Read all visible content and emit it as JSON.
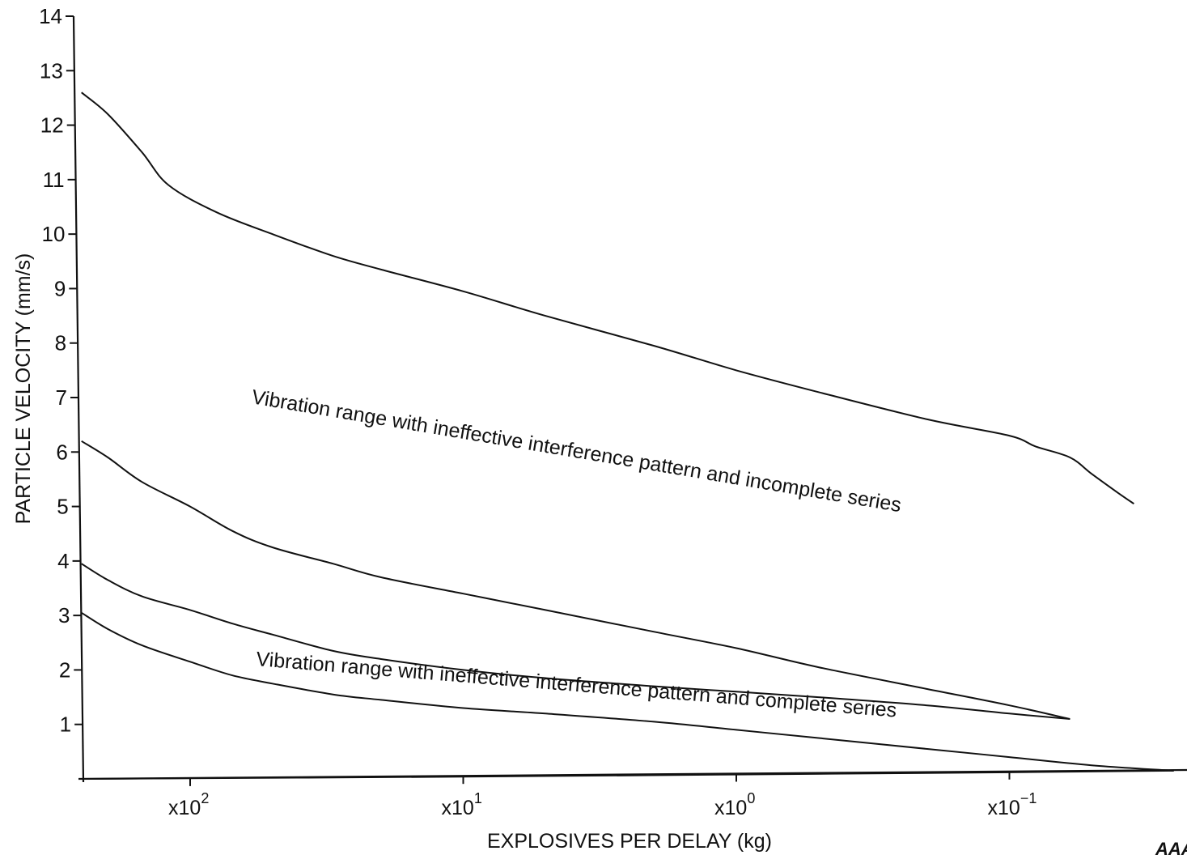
{
  "chart_data": {
    "type": "line",
    "title": "",
    "xlabel": "EXPLOSIVES PER DELAY (kg)",
    "ylabel": "PARTICLE VELOCITY (mm/s)",
    "x_scale": "log",
    "x_direction": "descending",
    "xlim": [
      250,
      0.025
    ],
    "ylim": [
      0,
      14
    ],
    "x_ticks": [
      {
        "value": 100,
        "base": "x10",
        "exp": "2"
      },
      {
        "value": 10,
        "base": "x10",
        "exp": "1"
      },
      {
        "value": 1,
        "base": "x10",
        "exp": "0"
      },
      {
        "value": 0.1,
        "base": "x10",
        "exp": "−1"
      }
    ],
    "y_ticks": [
      "1",
      "2",
      "3",
      "4",
      "5",
      "6",
      "7",
      "8",
      "9",
      "10",
      "11",
      "12",
      "13",
      "14"
    ],
    "grid": false,
    "series": [
      {
        "x": [
          250,
          200,
          150,
          120,
          80,
          50,
          30,
          20,
          10,
          5,
          2,
          1,
          0.5,
          0.2,
          0.1,
          0.08,
          0.06,
          0.05,
          0.04,
          0.035
        ],
        "y": [
          12.6,
          12.2,
          11.5,
          10.9,
          10.4,
          10.0,
          9.6,
          9.35,
          8.95,
          8.5,
          7.95,
          7.5,
          7.1,
          6.6,
          6.3,
          6.1,
          5.9,
          5.6,
          5.25,
          5.05
        ]
      },
      {
        "x": [
          250,
          200,
          150,
          100,
          70,
          50,
          30,
          20,
          10,
          5,
          2,
          1,
          0.5,
          0.2,
          0.1,
          0.06
        ],
        "y": [
          6.2,
          5.9,
          5.45,
          5.0,
          4.55,
          4.25,
          3.95,
          3.7,
          3.4,
          3.1,
          2.7,
          2.4,
          2.05,
          1.65,
          1.35,
          1.1
        ]
      },
      {
        "x": [
          250,
          200,
          150,
          100,
          70,
          50,
          30,
          20,
          10,
          5,
          2,
          1,
          0.5,
          0.2,
          0.1,
          0.06
        ],
        "y": [
          3.95,
          3.65,
          3.35,
          3.1,
          2.85,
          2.65,
          2.35,
          2.2,
          2.0,
          1.85,
          1.7,
          1.6,
          1.5,
          1.35,
          1.2,
          1.1
        ]
      },
      {
        "x": [
          250,
          200,
          150,
          100,
          70,
          50,
          30,
          20,
          10,
          5,
          2,
          1,
          0.5,
          0.2,
          0.1,
          0.05,
          0.025
        ],
        "y": [
          3.05,
          2.75,
          2.45,
          2.15,
          1.9,
          1.75,
          1.55,
          1.45,
          1.3,
          1.2,
          1.05,
          0.9,
          0.75,
          0.55,
          0.4,
          0.25,
          0.15
        ]
      },
      {
        "x": [
          250,
          10,
          1,
          0.1,
          0.025
        ],
        "y": [
          0.0,
          0.04,
          0.08,
          0.12,
          0.15
        ]
      }
    ],
    "annotations": [
      "Vibration range with ineffective interference pattern and incomplete series",
      "Vibration range with ineffective interference pattern and complete series"
    ]
  },
  "corner_mark": "AAA"
}
